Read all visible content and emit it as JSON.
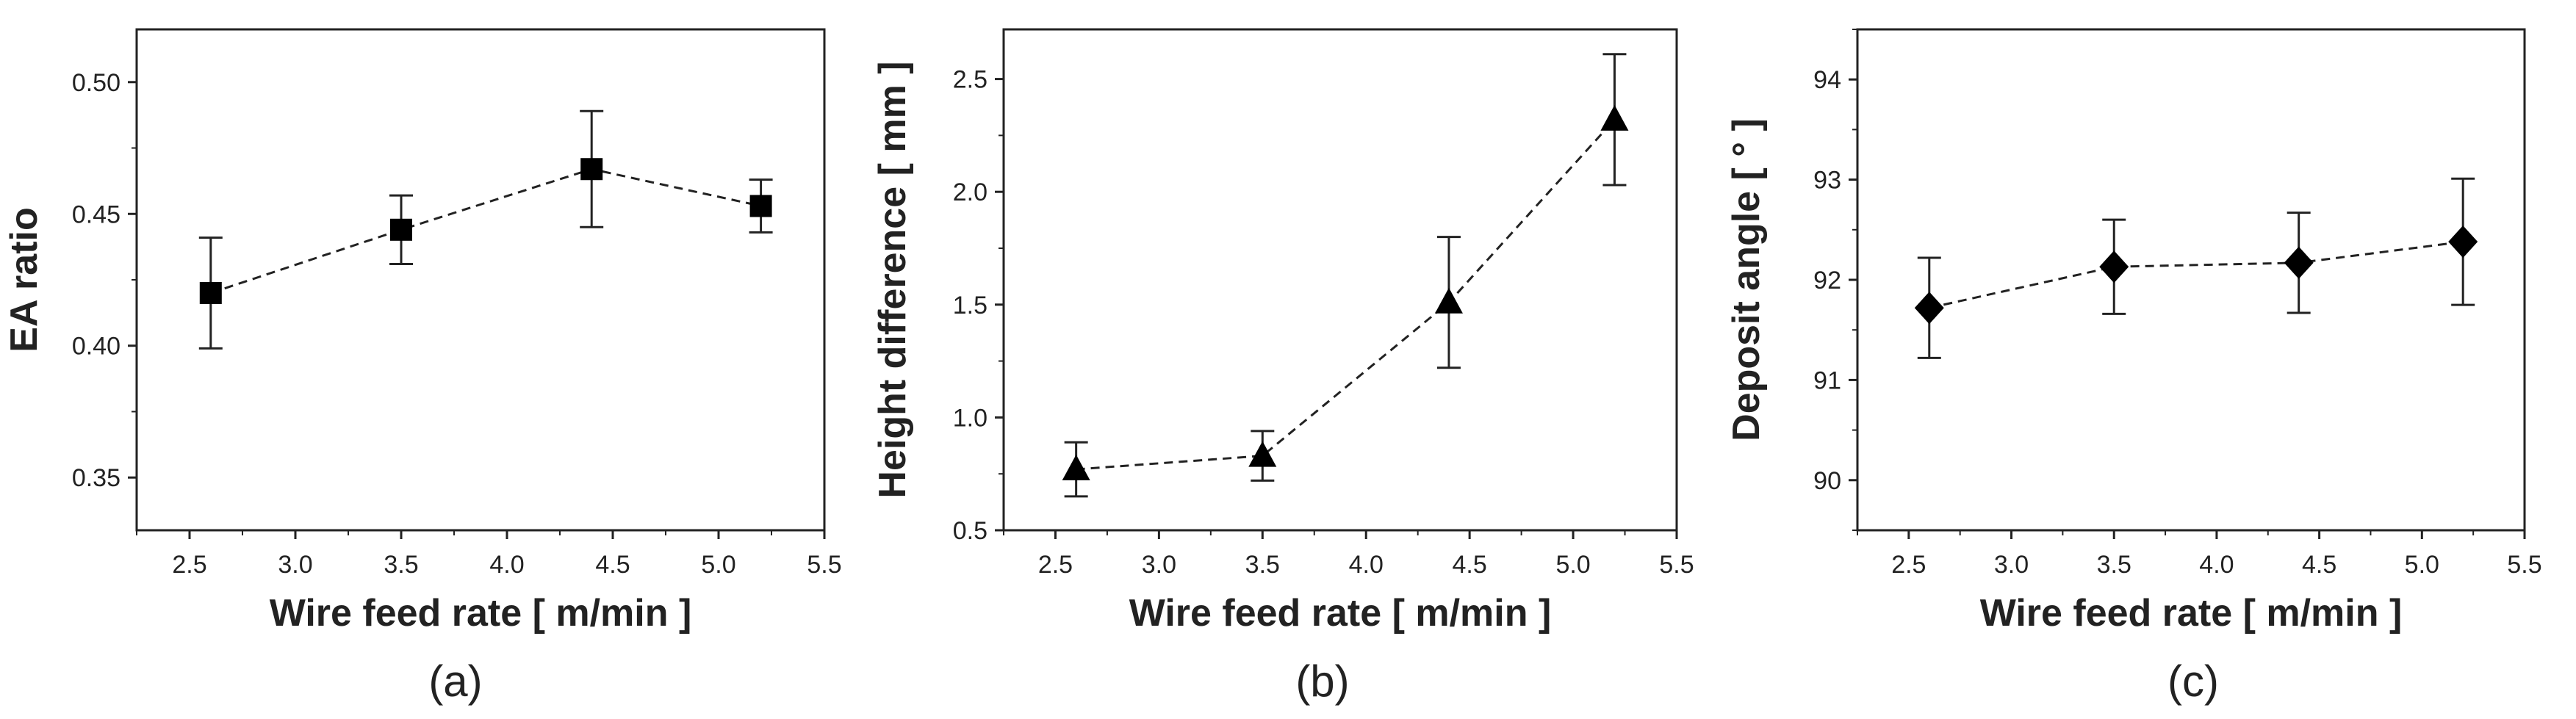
{
  "chart_data": [
    {
      "type": "scatter",
      "panel_label": "(a)",
      "marker": "square",
      "line_style": "dashed",
      "xlabel": "Wire feed rate [ m/min ]",
      "ylabel": "EA ratio",
      "xlim": [
        2.25,
        5.5
      ],
      "ylim": [
        0.33,
        0.52
      ],
      "xticks": [
        2.5,
        3.0,
        3.5,
        4.0,
        4.5,
        5.0,
        5.5
      ],
      "yticks": [
        0.35,
        0.4,
        0.45,
        0.5
      ],
      "xtick_labels": [
        "2.5",
        "3.0",
        "3.5",
        "4.0",
        "4.5",
        "5.0",
        "5.5"
      ],
      "ytick_labels": [
        "0.35",
        "0.40",
        "0.45",
        "0.50"
      ],
      "x": [
        2.6,
        3.5,
        4.4,
        5.2
      ],
      "y": [
        0.42,
        0.444,
        0.467,
        0.453
      ],
      "yerr": [
        0.021,
        0.013,
        0.022,
        0.01
      ]
    },
    {
      "type": "scatter",
      "panel_label": "(b)",
      "marker": "triangle",
      "line_style": "dashed",
      "xlabel": "Wire feed rate [ m/min ]",
      "ylabel": "Height difference [ mm ]",
      "xlim": [
        2.25,
        5.5
      ],
      "ylim": [
        0.5,
        2.72
      ],
      "xticks": [
        2.5,
        3.0,
        3.5,
        4.0,
        4.5,
        5.0,
        5.5
      ],
      "yticks": [
        0.5,
        1.0,
        1.5,
        2.0,
        2.5
      ],
      "xtick_labels": [
        "2.5",
        "3.0",
        "3.5",
        "4.0",
        "4.5",
        "5.0",
        "5.5"
      ],
      "ytick_labels": [
        "0.5",
        "1.0",
        "1.5",
        "2.0",
        "2.5"
      ],
      "x": [
        2.6,
        3.5,
        4.4,
        5.2
      ],
      "y": [
        0.77,
        0.83,
        1.51,
        2.32
      ],
      "yerr": [
        0.12,
        0.11,
        0.29,
        0.29
      ]
    },
    {
      "type": "scatter",
      "panel_label": "(c)",
      "marker": "diamond",
      "line_style": "dashed",
      "xlabel": "Wire feed rate [ m/min ]",
      "ylabel": "Deposit angle [ ° ]",
      "xlim": [
        2.25,
        5.5
      ],
      "ylim": [
        89.5,
        94.5
      ],
      "xticks": [
        2.5,
        3.0,
        3.5,
        4.0,
        4.5,
        5.0,
        5.5
      ],
      "yticks": [
        90,
        91,
        92,
        93,
        94
      ],
      "xtick_labels": [
        "2.5",
        "3.0",
        "3.5",
        "4.0",
        "4.5",
        "5.0",
        "5.5"
      ],
      "ytick_labels": [
        "90",
        "91",
        "92",
        "93",
        "94"
      ],
      "x": [
        2.6,
        3.5,
        4.4,
        5.2
      ],
      "y": [
        91.72,
        92.13,
        92.17,
        92.38
      ],
      "yerr": [
        0.5,
        0.47,
        0.5,
        0.63
      ]
    }
  ]
}
